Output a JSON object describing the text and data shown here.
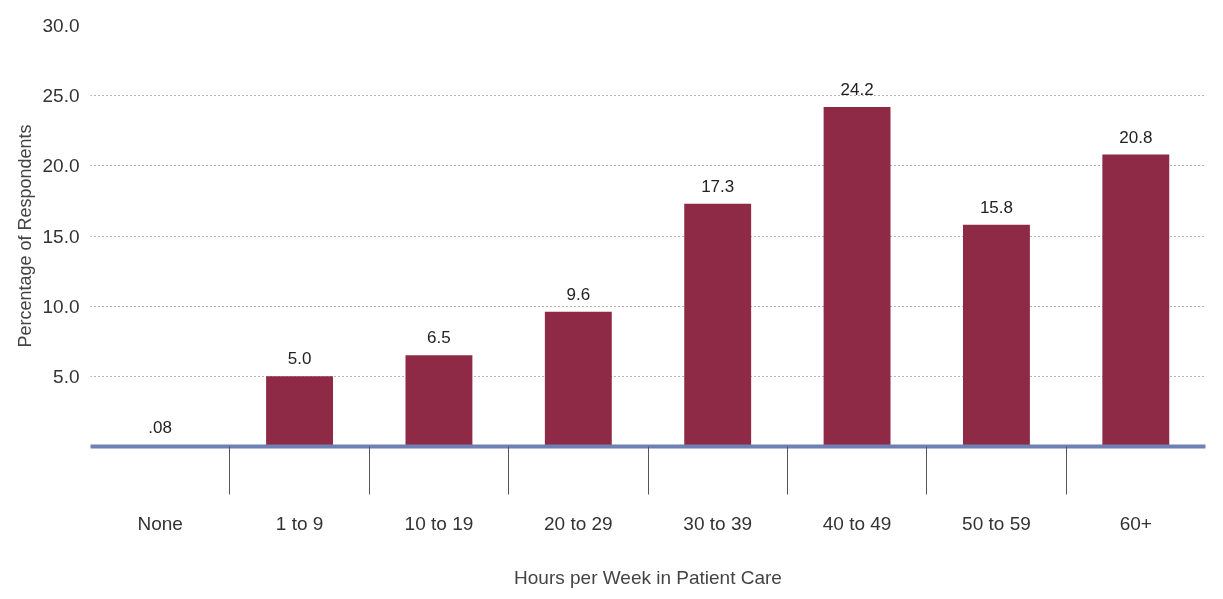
{
  "chart_data": {
    "type": "bar",
    "xlabel": "Hours per Week in Patient Care",
    "ylabel": "Percentage of Respondents",
    "categories": [
      "None",
      "1 to 9",
      "10 to 19",
      "20 to 29",
      "30 to 39",
      "40 to 49",
      "50 to 59",
      "60+"
    ],
    "values": [
      0.08,
      5.0,
      6.5,
      9.6,
      17.3,
      24.2,
      15.8,
      20.8
    ],
    "value_labels": [
      ".08",
      "5.0",
      "6.5",
      "9.6",
      "17.3",
      "24.2",
      "15.8",
      "20.8"
    ],
    "color": "#8e2a45",
    "ylim": [
      0,
      30
    ],
    "yticks": [
      {
        "value": 5,
        "label": "5.0"
      },
      {
        "value": 10,
        "label": "10.0"
      },
      {
        "value": 15,
        "label": "15.0"
      },
      {
        "value": 20,
        "label": "20.0"
      },
      {
        "value": 25,
        "label": "25.0"
      },
      {
        "value": 30,
        "label": "30.0"
      }
    ],
    "grid": "y"
  }
}
